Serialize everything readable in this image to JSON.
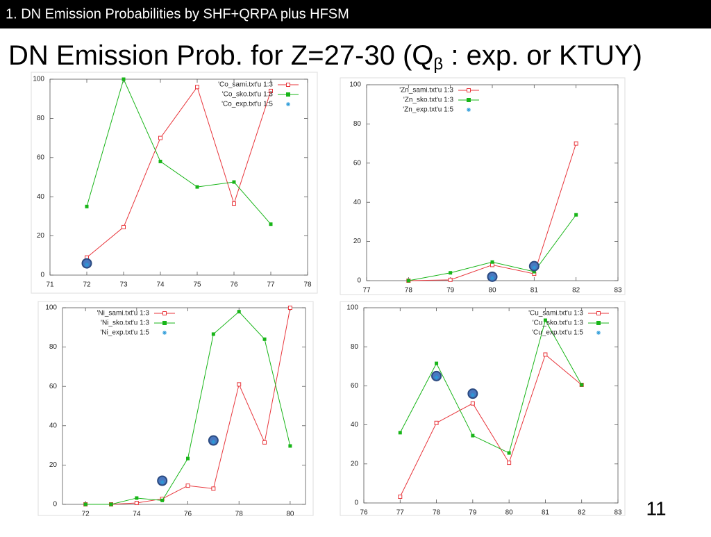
{
  "header": {
    "title": "1. DN Emission Probabilities by SHF+QRPA plus HFSM"
  },
  "slide": {
    "title": "DN Emission Prob. for Z=27-30 (Q",
    "title_subscript": "β",
    "title_end": " : exp. or KTUY)",
    "page_number": "11"
  },
  "chart_data": [
    {
      "type": "line",
      "x": [
        72,
        73,
        74,
        75,
        76,
        77
      ],
      "xlim": [
        71,
        78
      ],
      "xticks": [
        71,
        72,
        73,
        74,
        75,
        76,
        77,
        78
      ],
      "ylim": [
        0,
        100
      ],
      "yticks": [
        0,
        20,
        40,
        60,
        80,
        100
      ],
      "legend": "top-right",
      "series": [
        {
          "name": "'Co_sami.txt'u 1:3",
          "color": "#e8353b",
          "marker": "open-square",
          "line": true,
          "values": [
            9,
            24.5,
            70,
            96,
            36.5,
            94
          ]
        },
        {
          "name": "'Co_sko.txt'u 1:3",
          "color": "#18b518",
          "marker": "filled-square",
          "line": true,
          "values": [
            35,
            100,
            58,
            45,
            47.5,
            26
          ]
        },
        {
          "name": "'Co_exp.txt'u 1:5",
          "color": "#2a9ad8",
          "marker": "star",
          "line": false,
          "values": [
            6,
            null,
            null,
            null,
            null,
            null
          ]
        }
      ]
    },
    {
      "type": "line",
      "x": [
        78,
        79,
        80,
        81,
        82
      ],
      "xlim": [
        77,
        83
      ],
      "xticks": [
        77,
        78,
        79,
        80,
        81,
        82,
        83
      ],
      "ylim": [
        0,
        100
      ],
      "yticks": [
        0,
        20,
        40,
        60,
        80,
        100
      ],
      "legend": "top-left",
      "series": [
        {
          "name": "'Zn_sami.txt'u 1:3",
          "color": "#e8353b",
          "marker": "open-square",
          "line": true,
          "values": [
            0,
            0.4,
            8,
            3.5,
            70
          ]
        },
        {
          "name": "'Zn_sko.txt'u 1:3",
          "color": "#18b518",
          "marker": "filled-square",
          "line": true,
          "values": [
            0,
            4,
            9.5,
            4.6,
            33.6
          ]
        },
        {
          "name": "'Zn_exp.txt'u 1:5",
          "color": "#2a9ad8",
          "marker": "star",
          "line": false,
          "values": [
            null,
            null,
            2,
            7.4,
            null
          ]
        }
      ]
    },
    {
      "type": "line",
      "x": [
        72,
        73,
        74,
        75,
        76,
        77,
        78,
        79,
        80
      ],
      "xlim": [
        71.1,
        80.6
      ],
      "xticks": [
        72,
        74,
        76,
        78,
        80
      ],
      "ylim": [
        0,
        100
      ],
      "yticks": [
        0,
        20,
        40,
        60,
        80,
        100
      ],
      "legend": "top-left",
      "series": [
        {
          "name": "'Ni_sami.txt'u 1:3",
          "color": "#e8353b",
          "marker": "open-square",
          "line": true,
          "values": [
            0,
            0,
            0.7,
            2.8,
            9.5,
            8,
            61,
            31.5,
            100
          ]
        },
        {
          "name": "'Ni_sko.txt'u 1:3",
          "color": "#18b518",
          "marker": "filled-square",
          "line": true,
          "values": [
            0,
            0,
            3.2,
            2,
            23.3,
            86.6,
            98,
            84,
            29.7
          ]
        },
        {
          "name": "'Ni_exp.txt'u 1:5",
          "color": "#2a9ad8",
          "marker": "star",
          "line": false,
          "values": [
            null,
            null,
            null,
            12,
            null,
            32.5,
            null,
            null,
            null
          ]
        }
      ]
    },
    {
      "type": "line",
      "x": [
        77,
        78,
        79,
        80,
        81,
        82
      ],
      "xlim": [
        76,
        83
      ],
      "xticks": [
        76,
        77,
        78,
        79,
        80,
        81,
        82,
        83
      ],
      "ylim": [
        0,
        100
      ],
      "yticks": [
        0,
        20,
        40,
        60,
        80,
        100
      ],
      "legend": "top-right",
      "series": [
        {
          "name": "'Cu_sami.txt'u 1:3",
          "color": "#e8353b",
          "marker": "open-square",
          "line": true,
          "values": [
            3.2,
            41,
            51,
            20.6,
            76,
            60.5
          ]
        },
        {
          "name": "'Cu_sko.txt'u 1:3",
          "color": "#18b518",
          "marker": "filled-square",
          "line": true,
          "values": [
            36,
            71.5,
            34.5,
            25.6,
            93.6,
            60.5
          ]
        },
        {
          "name": "'Cu_exp.txt'u 1:5",
          "color": "#2a9ad8",
          "marker": "star",
          "line": false,
          "values": [
            null,
            65,
            56,
            null,
            null,
            null
          ]
        }
      ]
    }
  ]
}
